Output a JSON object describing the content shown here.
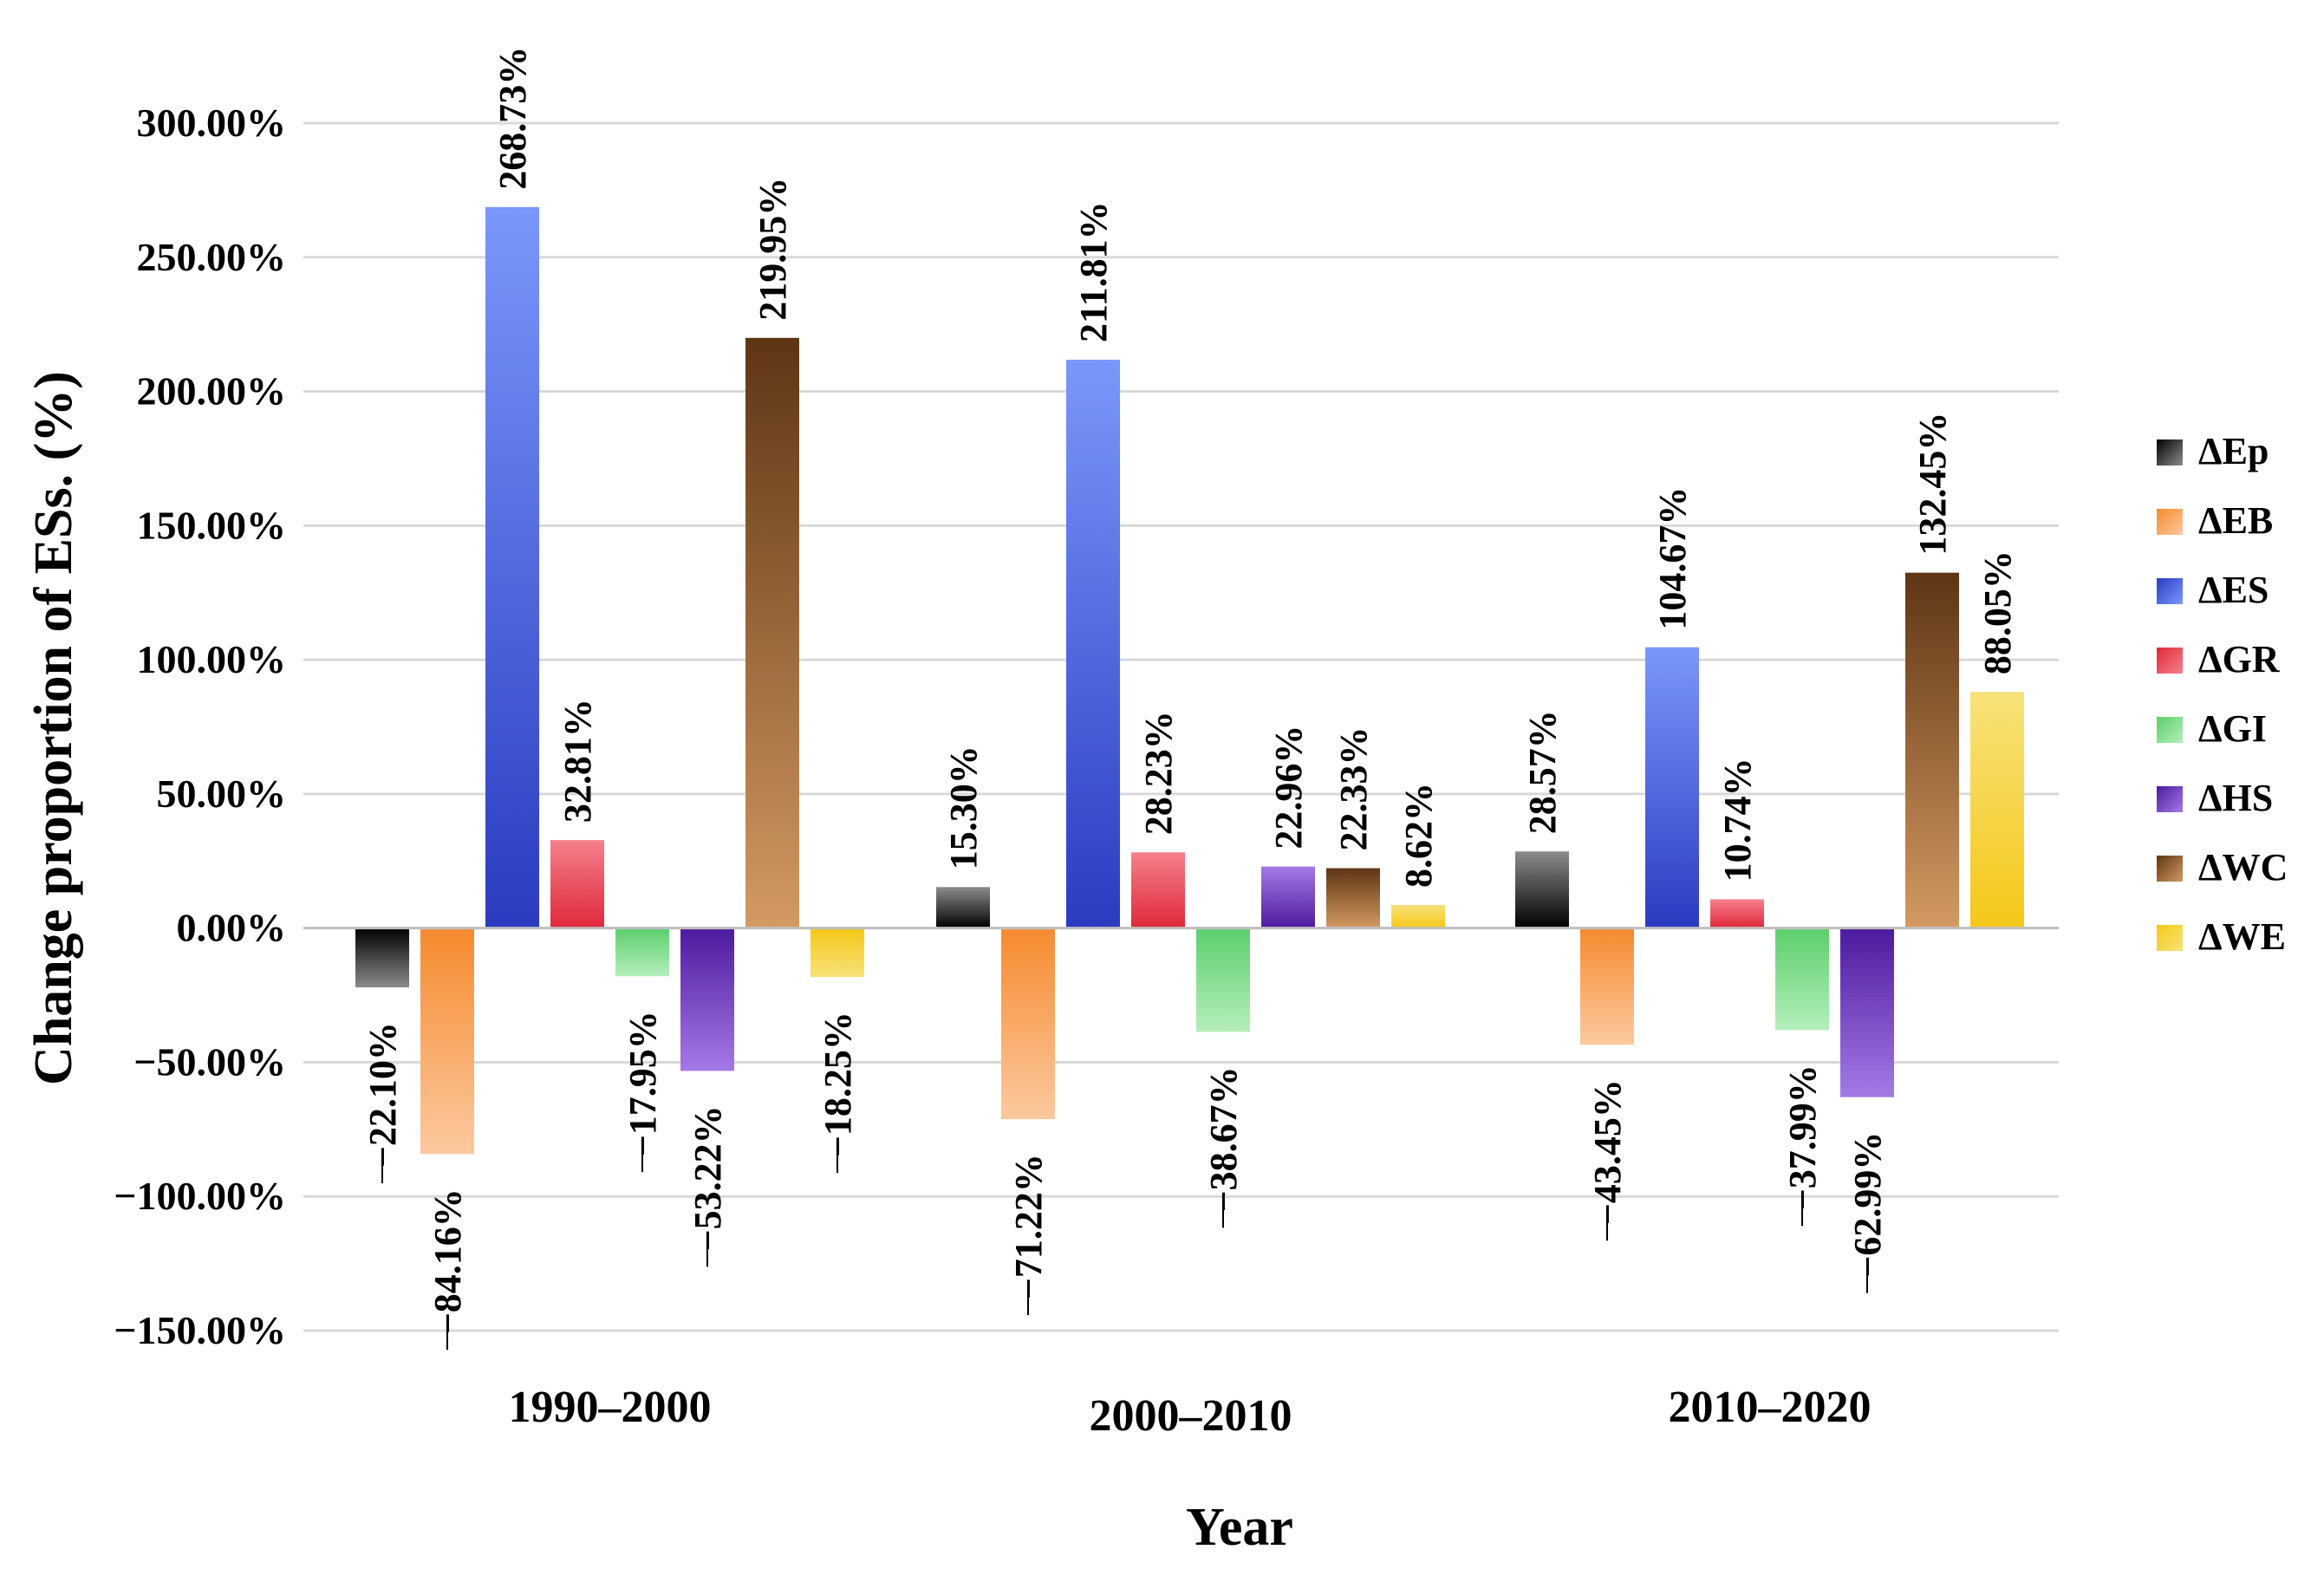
{
  "chart_data": {
    "type": "bar",
    "title": "",
    "xlabel": "Year",
    "ylabel": "Change proportion of ESs. (%)",
    "ylim": [
      -150,
      300
    ],
    "y_tick_step": 50,
    "y_tick_labels": [
      "300.00%",
      "250.00%",
      "200.00%",
      "150.00%",
      "100.00%",
      "50.00%",
      "0.00%",
      "−50.00%",
      "−100.00%",
      "−150.00%"
    ],
    "grid": true,
    "legend_position": "right",
    "categories": [
      "1990–2000",
      "2000–2010",
      "2010–2020"
    ],
    "series": [
      {
        "name": "ΔEp",
        "color": "#000000",
        "light": "#8c8c8c",
        "values": [
          -22.1,
          15.3,
          28.57
        ],
        "labels": [
          "−22.10%",
          "15.30%",
          "28.57%"
        ]
      },
      {
        "name": "ΔEB",
        "color": "#f68a2e",
        "light": "#fcc9a0",
        "values": [
          -84.16,
          -71.22,
          -43.45
        ],
        "labels": [
          "−84.16%",
          "−71.22%",
          "−43.45%"
        ]
      },
      {
        "name": "ΔES",
        "color": "#2a3bc0",
        "light": "#7a98fb",
        "values": [
          268.73,
          211.81,
          104.67
        ],
        "labels": [
          "268.73%",
          "211.81%",
          "104.67%"
        ]
      },
      {
        "name": "ΔGR",
        "color": "#e0283a",
        "light": "#f5808c",
        "values": [
          32.81,
          28.23,
          10.74
        ],
        "labels": [
          "32.81%",
          "28.23%",
          "10.74%"
        ]
      },
      {
        "name": "ΔGI",
        "color": "#5ccf6c",
        "light": "#b5eebc",
        "values": [
          -17.95,
          -38.67,
          -37.99
        ],
        "labels": [
          "−17.95%",
          "−38.67%",
          "−37.99%"
        ]
      },
      {
        "name": "ΔHS",
        "color": "#4c1a9e",
        "light": "#a47ae6",
        "values": [
          -53.22,
          22.96,
          -62.99
        ],
        "labels": [
          "−53.22%",
          "22.96%",
          "−62.99%"
        ]
      },
      {
        "name": "ΔWC",
        "color": "#5e3514",
        "light": "#d39a62",
        "values": [
          219.95,
          22.33,
          132.45
        ],
        "labels": [
          "219.95%",
          "22.33%",
          "132.45%"
        ]
      },
      {
        "name": "ΔWE",
        "color": "#f4c818",
        "light": "#f8e27a",
        "values": [
          -18.25,
          8.62,
          88.05
        ],
        "labels": [
          "−18.25%",
          "8.62%",
          "88.05%"
        ]
      }
    ]
  }
}
